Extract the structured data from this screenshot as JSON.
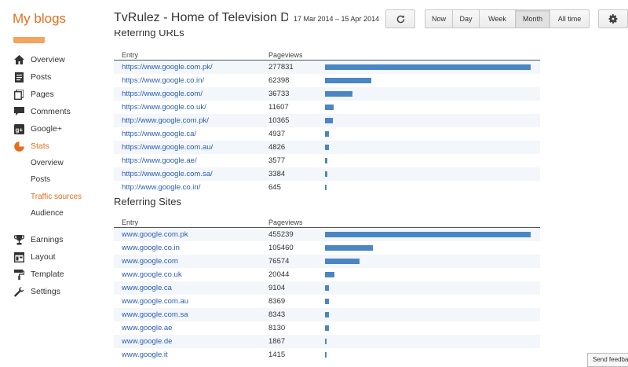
{
  "header": {
    "brand": "My blogs",
    "blog_title": "TvRulez - Home of Television Dr",
    "date_range": "17 Mar 2014 – 15 Apr 2014",
    "range_buttons": [
      "Now",
      "Day",
      "Week",
      "Month",
      "All time"
    ],
    "active_range": "Month"
  },
  "sidebar": {
    "items": [
      {
        "label": "Overview",
        "icon": "home-icon"
      },
      {
        "label": "Posts",
        "icon": "posts-icon"
      },
      {
        "label": "Pages",
        "icon": "pages-icon"
      },
      {
        "label": "Comments",
        "icon": "comments-icon"
      },
      {
        "label": "Google+",
        "icon": "google-plus-icon"
      },
      {
        "label": "Stats",
        "icon": "stats-icon",
        "active": true
      }
    ],
    "stats_subitems": [
      {
        "label": "Overview"
      },
      {
        "label": "Posts"
      },
      {
        "label": "Traffic sources",
        "active": true
      },
      {
        "label": "Audience"
      }
    ],
    "bottom_items": [
      {
        "label": "Earnings",
        "icon": "trophy-icon"
      },
      {
        "label": "Layout",
        "icon": "layout-icon"
      },
      {
        "label": "Template",
        "icon": "template-icon"
      },
      {
        "label": "Settings",
        "icon": "wrench-icon"
      }
    ]
  },
  "referring_urls": {
    "heading": "Referring URLs",
    "col_entry": "Entry",
    "col_pageviews": "Pageviews",
    "rows": [
      {
        "entry": "https://www.google.com.pk/",
        "pageviews": 277831
      },
      {
        "entry": "https://www.google.co.in/",
        "pageviews": 62398
      },
      {
        "entry": "https://www.google.com/",
        "pageviews": 36733
      },
      {
        "entry": "https://www.google.co.uk/",
        "pageviews": 11607
      },
      {
        "entry": "http://www.google.com.pk/",
        "pageviews": 10365
      },
      {
        "entry": "https://www.google.ca/",
        "pageviews": 4937
      },
      {
        "entry": "https://www.google.com.au/",
        "pageviews": 4826
      },
      {
        "entry": "https://www.google.ae/",
        "pageviews": 3577
      },
      {
        "entry": "https://www.google.com.sa/",
        "pageviews": 3384
      },
      {
        "entry": "http://www.google.co.in/",
        "pageviews": 645
      }
    ]
  },
  "referring_sites": {
    "heading": "Referring Sites",
    "col_entry": "Entry",
    "col_pageviews": "Pageviews",
    "rows": [
      {
        "entry": "www.google.com.pk",
        "pageviews": 455239
      },
      {
        "entry": "www.google.co.in",
        "pageviews": 105460
      },
      {
        "entry": "www.google.com",
        "pageviews": 76574
      },
      {
        "entry": "www.google.co.uk",
        "pageviews": 20044
      },
      {
        "entry": "www.google.ca",
        "pageviews": 9104
      },
      {
        "entry": "www.google.com.au",
        "pageviews": 8369
      },
      {
        "entry": "www.google.com.sa",
        "pageviews": 8343
      },
      {
        "entry": "www.google.ae",
        "pageviews": 8130
      },
      {
        "entry": "www.google.de",
        "pageviews": 1867
      },
      {
        "entry": "www.google.it",
        "pageviews": 1415
      }
    ]
  },
  "feedback": "Send feedback",
  "colors": {
    "accent": "#e36f1e",
    "bar": "#4a86c4",
    "link": "#2a5db0"
  }
}
